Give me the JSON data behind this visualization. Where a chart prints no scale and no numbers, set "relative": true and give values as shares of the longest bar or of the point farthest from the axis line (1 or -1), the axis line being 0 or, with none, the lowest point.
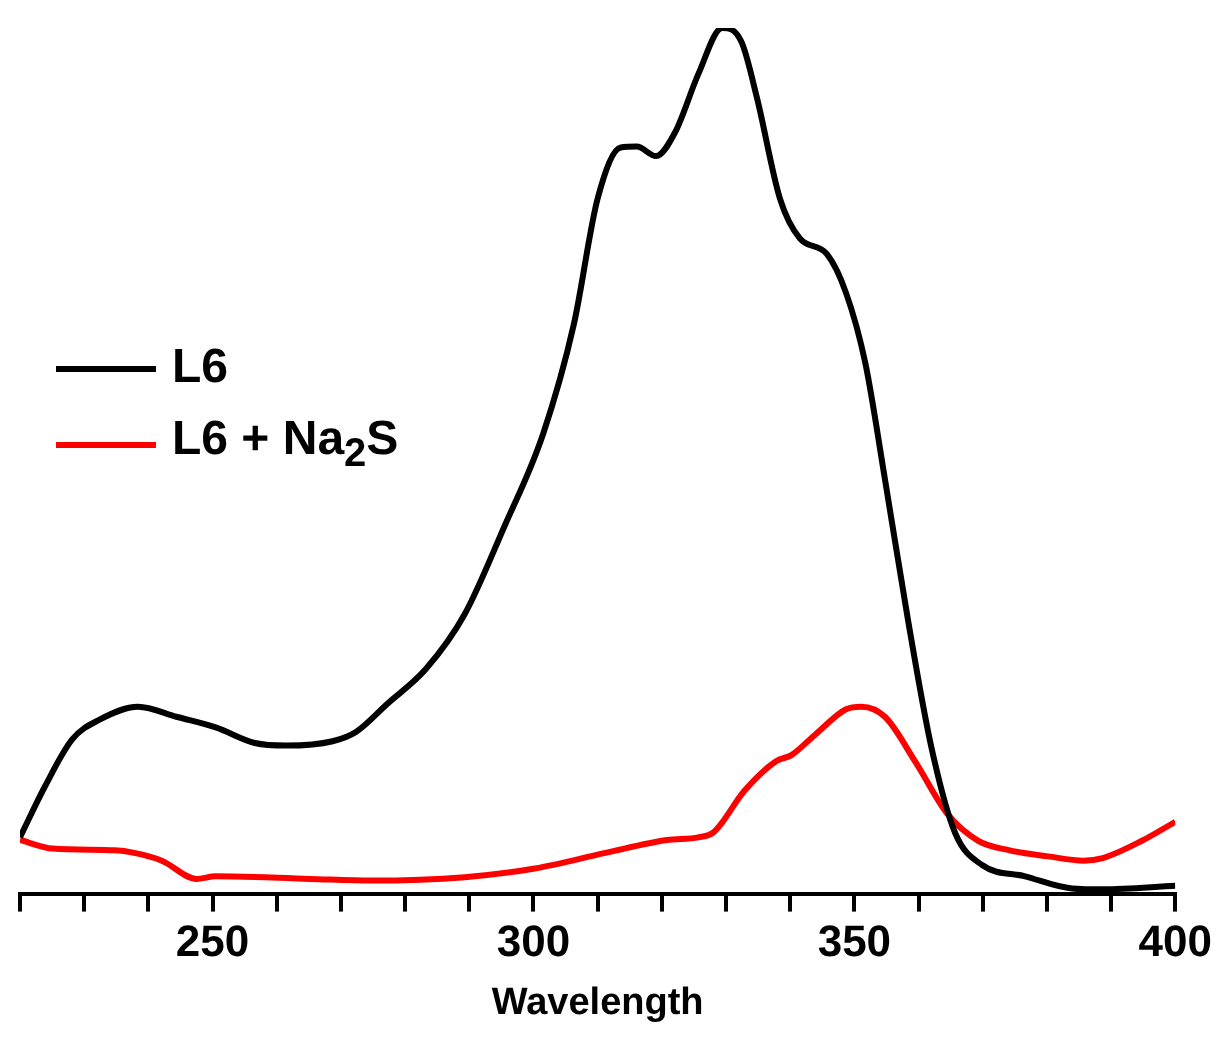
{
  "chart_data": {
    "type": "line",
    "xlabel": "Wavelength",
    "relative": true,
    "legend": "left",
    "grid": false,
    "marker": "none",
    "line_style": "solid",
    "xlim": [
      220,
      400
    ],
    "xticks": [
      {
        "value": 220,
        "label": null
      },
      {
        "value": 230,
        "label": null
      },
      {
        "value": 240,
        "label": null
      },
      250,
      {
        "value": 260,
        "label": null
      },
      {
        "value": 270,
        "label": null
      },
      {
        "value": 280,
        "label": null
      },
      {
        "value": 290,
        "label": null
      },
      300,
      {
        "value": 310,
        "label": null
      },
      {
        "value": 320,
        "label": null
      },
      {
        "value": 330,
        "label": null
      },
      {
        "value": 340,
        "label": null
      },
      350,
      {
        "value": 360,
        "label": null
      },
      {
        "value": 370,
        "label": null
      },
      {
        "value": 380,
        "label": null
      },
      {
        "value": 390,
        "label": null
      },
      400
    ],
    "series": [
      {
        "name": "L6",
        "color": "#000000",
        "x": [
          220,
          223.9,
          228.1,
          232.4,
          238.4,
          244.5,
          250.5,
          256.6,
          261.5,
          268.7,
          272.4,
          277.2,
          283.3,
          289.3,
          295.4,
          301.5,
          306.3,
          310,
          313.6,
          316.1,
          319.1,
          322.1,
          325.7,
          329.4,
          332.4,
          334.8,
          338.4,
          341.5,
          345.7,
          348.7,
          351.7,
          354.8,
          358.4,
          362,
          365.7,
          369.9,
          376.6,
          383.9,
          388.7,
          400
        ],
        "values": [
          0.065,
          0.124,
          0.178,
          0.201,
          0.216,
          0.204,
          0.192,
          0.174,
          0.171,
          0.176,
          0.187,
          0.219,
          0.26,
          0.323,
          0.423,
          0.531,
          0.658,
          0.803,
          0.862,
          0.863,
          0.852,
          0.88,
          0.947,
          1,
          0.984,
          0.92,
          0.803,
          0.757,
          0.739,
          0.694,
          0.613,
          0.477,
          0.314,
          0.169,
          0.07,
          0.033,
          0.02,
          0.006,
          0.005,
          0.009
        ]
      },
      {
        "name": "L6 + Na$_{2}$S",
        "color": "#ff0000",
        "x": [
          220,
          225.1,
          234.8,
          237.8,
          242.1,
          247.5,
          250.5,
          265.1,
          274.8,
          289.3,
          300.2,
          311.2,
          320.8,
          325.7,
          328.1,
          332.9,
          337.8,
          340.2,
          343.8,
          348.7,
          351.1,
          354.8,
          359.6,
          364.5,
          369.3,
          374.2,
          380.2,
          385.7,
          388.7,
          394.8,
          400
        ],
        "values": [
          0.062,
          0.052,
          0.05,
          0.047,
          0.038,
          0.017,
          0.02,
          0.017,
          0.015,
          0.019,
          0.029,
          0.047,
          0.062,
          0.065,
          0.071,
          0.119,
          0.153,
          0.16,
          0.183,
          0.213,
          0.216,
          0.204,
          0.151,
          0.092,
          0.061,
          0.05,
          0.043,
          0.038,
          0.041,
          0.061,
          0.083
        ]
      }
    ]
  }
}
